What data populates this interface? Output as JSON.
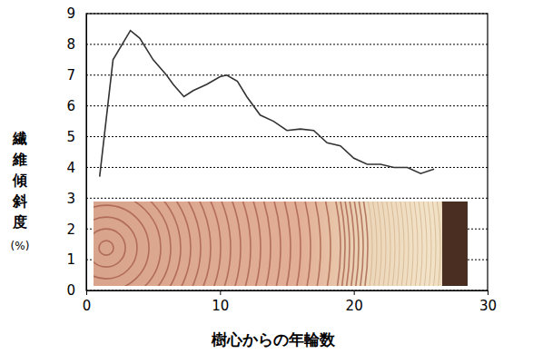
{
  "chart_data": {
    "type": "line",
    "x_label": "樹心からの年輪数",
    "y_label": "繊維傾斜度(%)",
    "x": [
      1,
      2,
      3.3,
      4,
      5,
      6,
      6.5,
      7.3,
      8,
      9,
      10,
      10.5,
      11.3,
      12,
      13,
      14,
      15,
      16,
      17,
      18,
      19,
      20,
      21,
      22,
      23,
      24,
      25,
      26
    ],
    "values": [
      3.7,
      7.5,
      8.45,
      8.2,
      7.5,
      7.0,
      6.7,
      6.3,
      6.5,
      6.7,
      6.95,
      7.0,
      6.8,
      6.3,
      5.7,
      5.5,
      5.2,
      5.25,
      5.2,
      4.8,
      4.7,
      4.3,
      4.1,
      4.1,
      4.0,
      4.0,
      3.8,
      3.95
    ],
    "color": "#333333",
    "xlim": [
      0,
      30
    ],
    "xticks": [
      0,
      10,
      20,
      30
    ],
    "ylim": [
      0,
      9
    ],
    "yticks": [
      0,
      1,
      2,
      3,
      4,
      5,
      6,
      7,
      8,
      9
    ],
    "grid": true
  }
}
